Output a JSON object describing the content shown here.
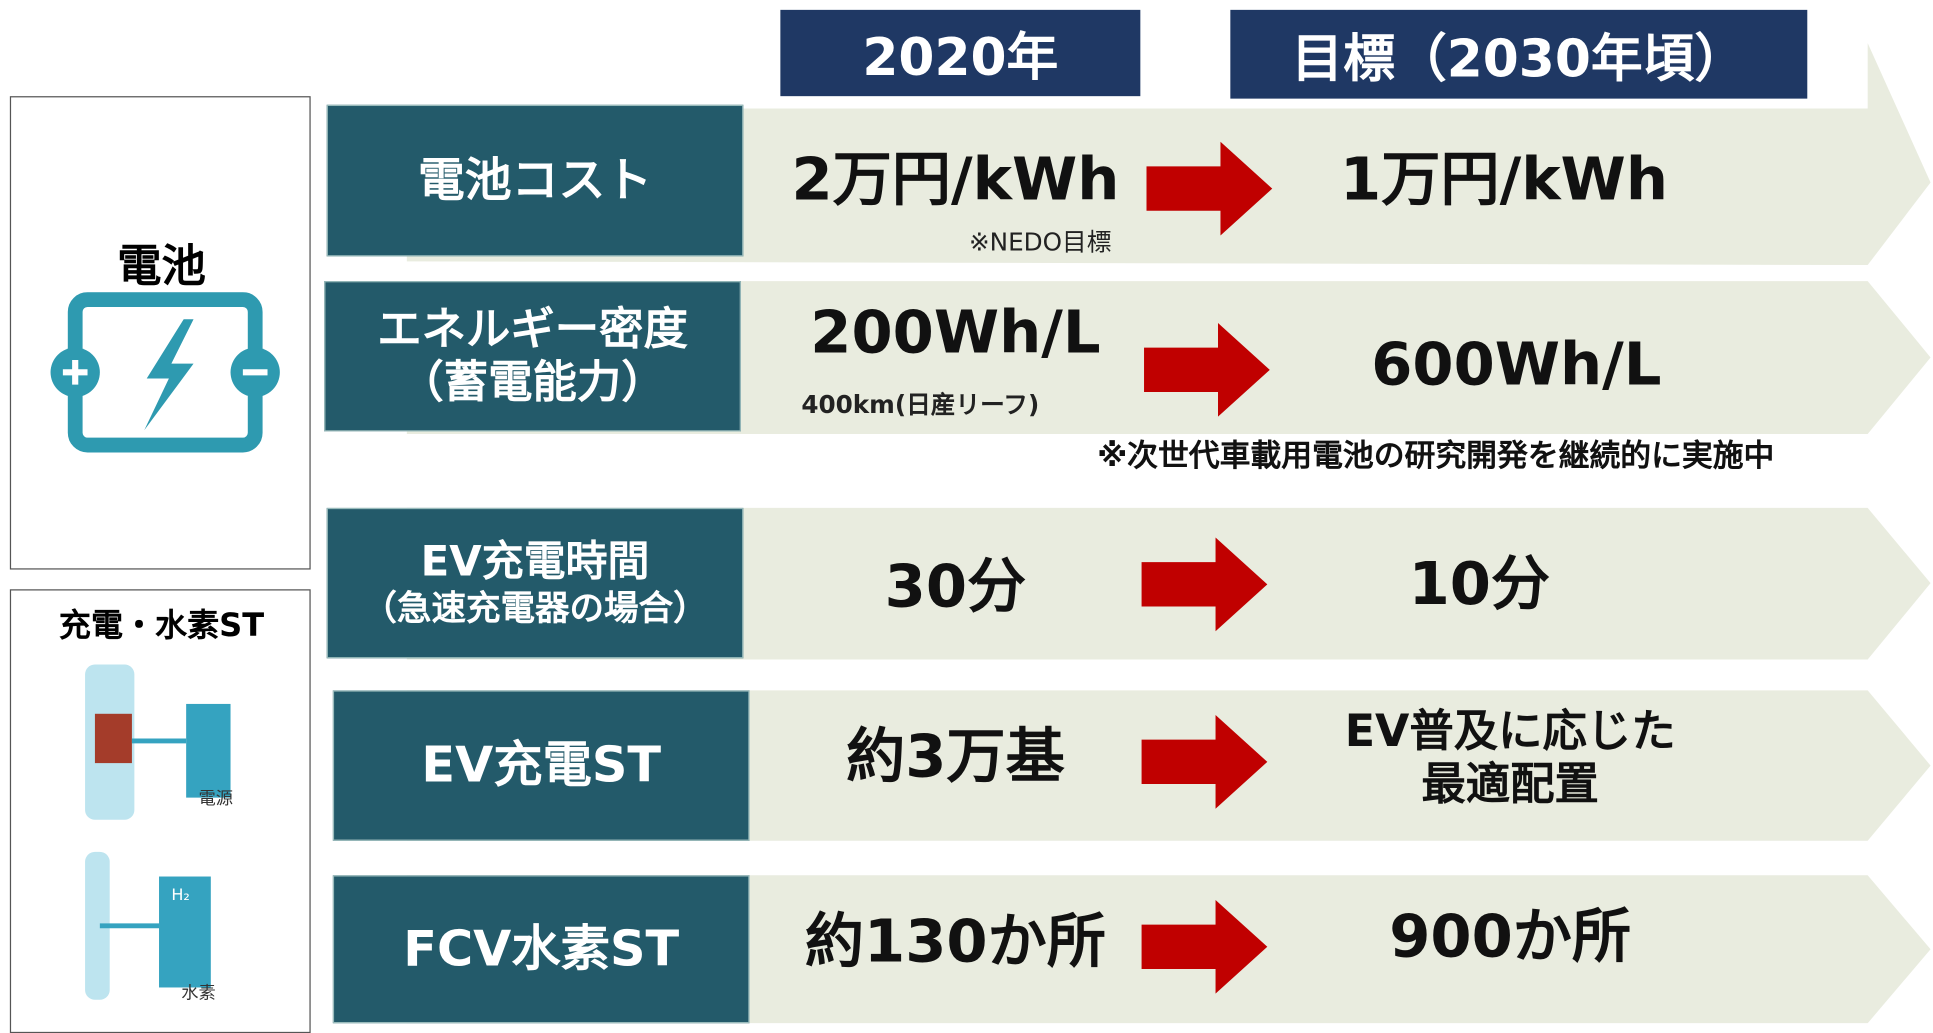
{
  "columns": {
    "current": "2020年",
    "target": "目標（2030年頃）"
  },
  "sidebar": {
    "battery": "電池",
    "station": "充電・水素ST",
    "power_label": "電源",
    "hydrogen_label": "水素",
    "h2_label": "H₂"
  },
  "rows": [
    {
      "label": [
        "電池コスト"
      ],
      "current": "2万円/kWh",
      "current_note": "※NEDO目標",
      "target": [
        "1万円/kWh"
      ]
    },
    {
      "label": [
        "エネルギー密度",
        "（蓄電能力）"
      ],
      "current": "200Wh/L",
      "current_note": "400km(日産リーフ)",
      "target": [
        "600Wh/L"
      ]
    },
    {
      "label": [
        "EV充電時間",
        "（急速充電器の場合）"
      ],
      "current": "30分",
      "target": [
        "10分"
      ]
    },
    {
      "label": [
        "EV充電ST"
      ],
      "current": "約3万基",
      "target": [
        "EV普及に応じた",
        "最適配置"
      ]
    },
    {
      "label": [
        "FCV水素ST"
      ],
      "current": "約130か所",
      "target": [
        "900か所"
      ]
    }
  ],
  "note": "※次世代車載用電池の研究開発を継続的に実施中"
}
